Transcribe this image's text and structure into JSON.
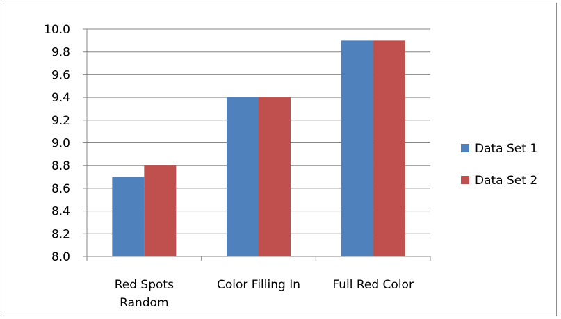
{
  "chart_data": {
    "type": "bar",
    "categories": [
      [
        "Red Spots",
        "Random"
      ],
      [
        "Color Filling In"
      ],
      [
        "Full Red Color"
      ]
    ],
    "series": [
      {
        "name": "Data Set 1",
        "values": [
          8.7,
          9.4,
          9.9
        ],
        "color": "#4f81bd"
      },
      {
        "name": "Data Set 2",
        "values": [
          8.8,
          9.4,
          9.9
        ],
        "color": "#c0504d"
      }
    ],
    "yticks": [
      "8.0",
      "8.2",
      "8.4",
      "8.6",
      "8.8",
      "9.0",
      "9.2",
      "9.4",
      "9.6",
      "9.8",
      "10.0"
    ],
    "ylim": [
      8.0,
      10.0
    ],
    "grid": true,
    "legend_position": "right",
    "title": "",
    "xlabel": "",
    "ylabel": ""
  }
}
